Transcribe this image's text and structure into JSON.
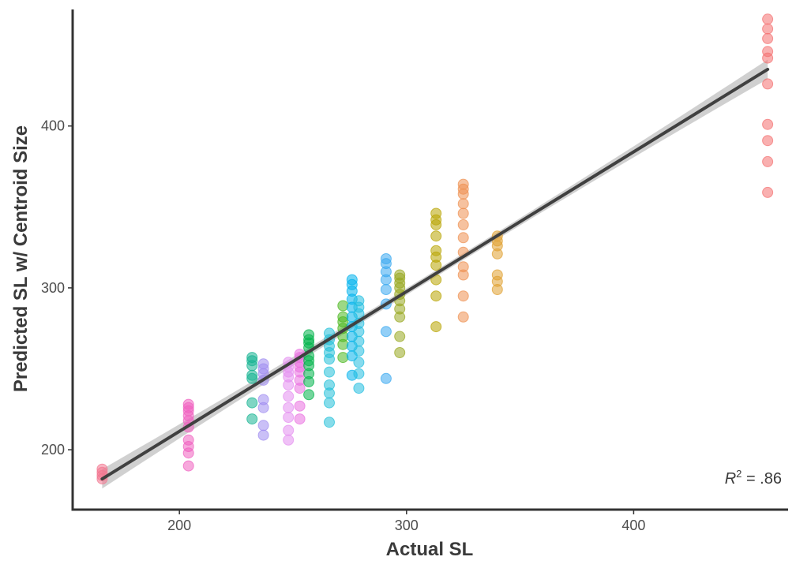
{
  "chart_data": {
    "type": "scatter",
    "xlabel": "Actual SL",
    "ylabel": "Predicted SL w/ Centroid Size",
    "xlim": [
      153,
      468
    ],
    "ylim": [
      163,
      472
    ],
    "x_ticks": [
      {
        "value": 200,
        "label": "200"
      },
      {
        "value": 300,
        "label": "300"
      },
      {
        "value": 400,
        "label": "400"
      }
    ],
    "y_ticks": [
      {
        "value": 200,
        "label": "200"
      },
      {
        "value": 300,
        "label": "300"
      },
      {
        "value": 400,
        "label": "400"
      }
    ],
    "grid": false,
    "legend": "none",
    "annotation": {
      "symbol": "R",
      "superscript": "2",
      "text": " = .86"
    },
    "fit_line": {
      "x": [
        166,
        459
      ],
      "y": [
        182,
        435
      ],
      "ci_halfwidth_ends": 6,
      "ci_halfwidth_mid": 2,
      "color": "#404040",
      "band_color": "#c8c8c8"
    },
    "groups": [
      {
        "x": 166,
        "color": "#f27690",
        "y": [
          182,
          184,
          186,
          188
        ]
      },
      {
        "x": 204,
        "color": "#f060c0",
        "y": [
          190,
          198,
          202,
          206,
          214,
          218,
          221,
          224,
          226,
          228
        ]
      },
      {
        "x": 232,
        "color": "#16b392",
        "y": [
          219,
          229,
          244,
          246,
          252,
          255,
          257
        ]
      },
      {
        "x": 237,
        "color": "#9f8cf0",
        "y": [
          209,
          215,
          226,
          231,
          243,
          247,
          250,
          253
        ]
      },
      {
        "x": 248,
        "color": "#e48ef0",
        "y": [
          206,
          212,
          220,
          226,
          233,
          240,
          245,
          248,
          251,
          254
        ]
      },
      {
        "x": 253,
        "color": "#ea70e0",
        "y": [
          219,
          227,
          238,
          243,
          248,
          251,
          254,
          257,
          259
        ]
      },
      {
        "x": 257,
        "color": "#00b34a",
        "y": [
          234,
          242,
          247,
          252,
          255,
          258,
          263,
          266,
          268,
          271
        ]
      },
      {
        "x": 266,
        "color": "#22c0d8",
        "y": [
          217,
          229,
          235,
          240,
          248,
          256,
          260,
          264,
          268,
          272
        ]
      },
      {
        "x": 272,
        "color": "#4cb820",
        "y": [
          257,
          265,
          270,
          275,
          279,
          282,
          289
        ]
      },
      {
        "x": 276,
        "color": "#00b2ec",
        "y": [
          246,
          258,
          264,
          270,
          276,
          282,
          288,
          293,
          298,
          302,
          305
        ]
      },
      {
        "x": 279,
        "color": "#22bde0",
        "y": [
          238,
          247,
          254,
          261,
          267,
          273,
          278,
          284,
          288,
          292
        ]
      },
      {
        "x": 291,
        "color": "#38a8f0",
        "y": [
          244,
          273,
          290,
          299,
          305,
          310,
          315,
          318
        ]
      },
      {
        "x": 297,
        "color": "#98a820",
        "y": [
          260,
          270,
          282,
          287,
          292,
          296,
          300,
          303,
          306,
          308
        ]
      },
      {
        "x": 313,
        "color": "#b8a400",
        "y": [
          276,
          295,
          305,
          314,
          319,
          323,
          332,
          339,
          342,
          346
        ]
      },
      {
        "x": 325,
        "color": "#ee9050",
        "y": [
          282,
          295,
          308,
          313,
          322,
          331,
          339,
          346,
          352,
          358,
          361,
          364
        ]
      },
      {
        "x": 340,
        "color": "#e0a030",
        "y": [
          299,
          304,
          308,
          321,
          326,
          329,
          332
        ]
      },
      {
        "x": 459,
        "color": "#f47070",
        "y": [
          359,
          378,
          391,
          401,
          426,
          442,
          446,
          454,
          460,
          466
        ]
      }
    ]
  }
}
